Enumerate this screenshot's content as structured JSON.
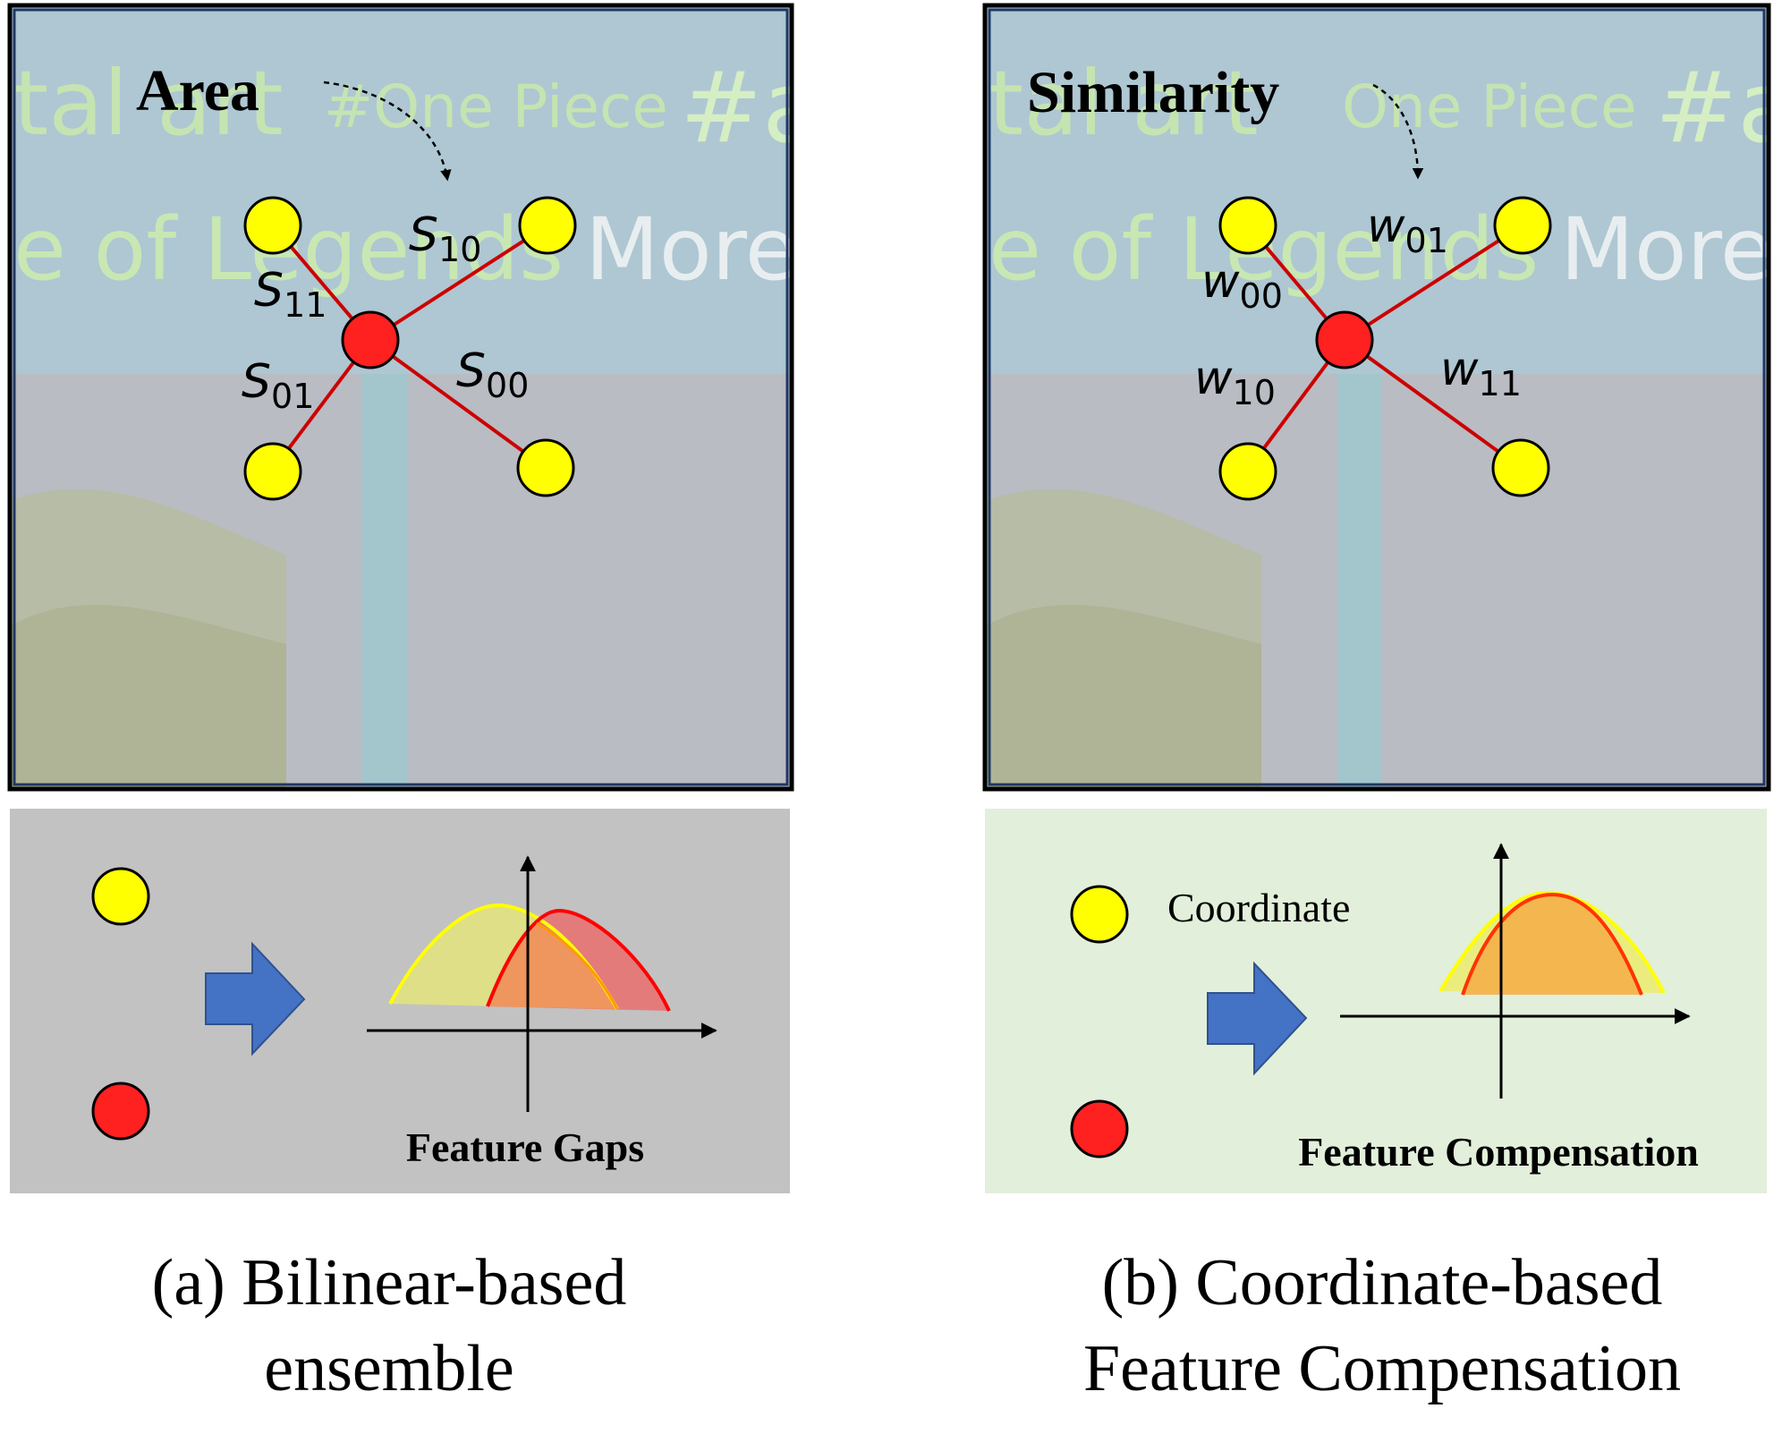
{
  "panels": [
    {
      "id": "a",
      "title": "Area",
      "background_text": {
        "line1_left": "tal art",
        "line1_mid": "#One Piece",
        "line1_right": "#a",
        "line2_left": "e of Legends",
        "line2_right": "More"
      },
      "weights": {
        "top_left": {
          "letter": "S",
          "sub": "11"
        },
        "top_right": {
          "letter": "S",
          "sub": "10"
        },
        "bottom_left": {
          "letter": "S",
          "sub": "01"
        },
        "bottom_right": {
          "letter": "S",
          "sub": "00"
        }
      },
      "bottom_label": "Feature Gaps",
      "caption_line1": "(a) Bilinear-based",
      "caption_line2": "ensemble",
      "bottom_bg": "#c2c2c2"
    },
    {
      "id": "b",
      "title": "Similarity",
      "background_text": {
        "line1_left": "tal art",
        "line1_mid": "One Piece",
        "line1_right": "#a",
        "line2_left": "e of Legends",
        "line2_right": "More"
      },
      "weights": {
        "top_left": {
          "letter": "w",
          "sub": "00"
        },
        "top_right": {
          "letter": "w",
          "sub": "01"
        },
        "bottom_left": {
          "letter": "w",
          "sub": "10"
        },
        "bottom_right": {
          "letter": "w",
          "sub": "11"
        }
      },
      "coord_label": "Coordinate",
      "bottom_label": "Feature Compensation",
      "caption_line1": "(b) Coordinate-based",
      "caption_line2": "Feature Compensation",
      "bottom_bg": "#e2efda"
    }
  ],
  "colors": {
    "yellow_point": "#ffff00",
    "red_point": "#ff0000",
    "edge": "#cc0000",
    "arrow_blue": "#4472c4",
    "frame": "#1f3864",
    "curve_yellow": "#ffff00",
    "curve_red": "#ff0000",
    "fill_orange": "#f4b183"
  }
}
